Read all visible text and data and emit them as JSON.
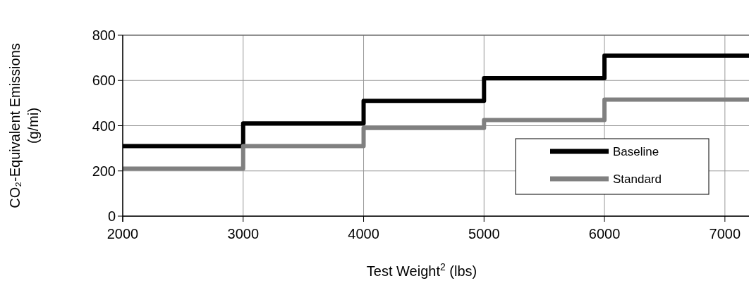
{
  "chart_data": {
    "type": "step",
    "xlabel": "Test Weight$^{2}$ (lbs)",
    "ylabel": "CO₂-Equivalent Emissions (g/mi)",
    "x": [
      2000,
      3000,
      4000,
      5000,
      6000,
      7200
    ],
    "series": [
      {
        "name": "Baseline",
        "color": "#000000",
        "values": [
          310,
          410,
          510,
          610,
          710,
          710
        ]
      },
      {
        "name": "Standard",
        "color": "#808080",
        "values": [
          210,
          310,
          390,
          425,
          515,
          515
        ]
      }
    ],
    "xlim": [
      2000,
      7200
    ],
    "xticks": [
      2000,
      3000,
      4000,
      5000,
      6000,
      7000
    ],
    "ylim": [
      0,
      800
    ],
    "yticks": [
      0,
      200,
      400,
      600,
      800
    ],
    "grid": true,
    "legend": "bottom right",
    "line_style": "solid",
    "marker": "none"
  }
}
